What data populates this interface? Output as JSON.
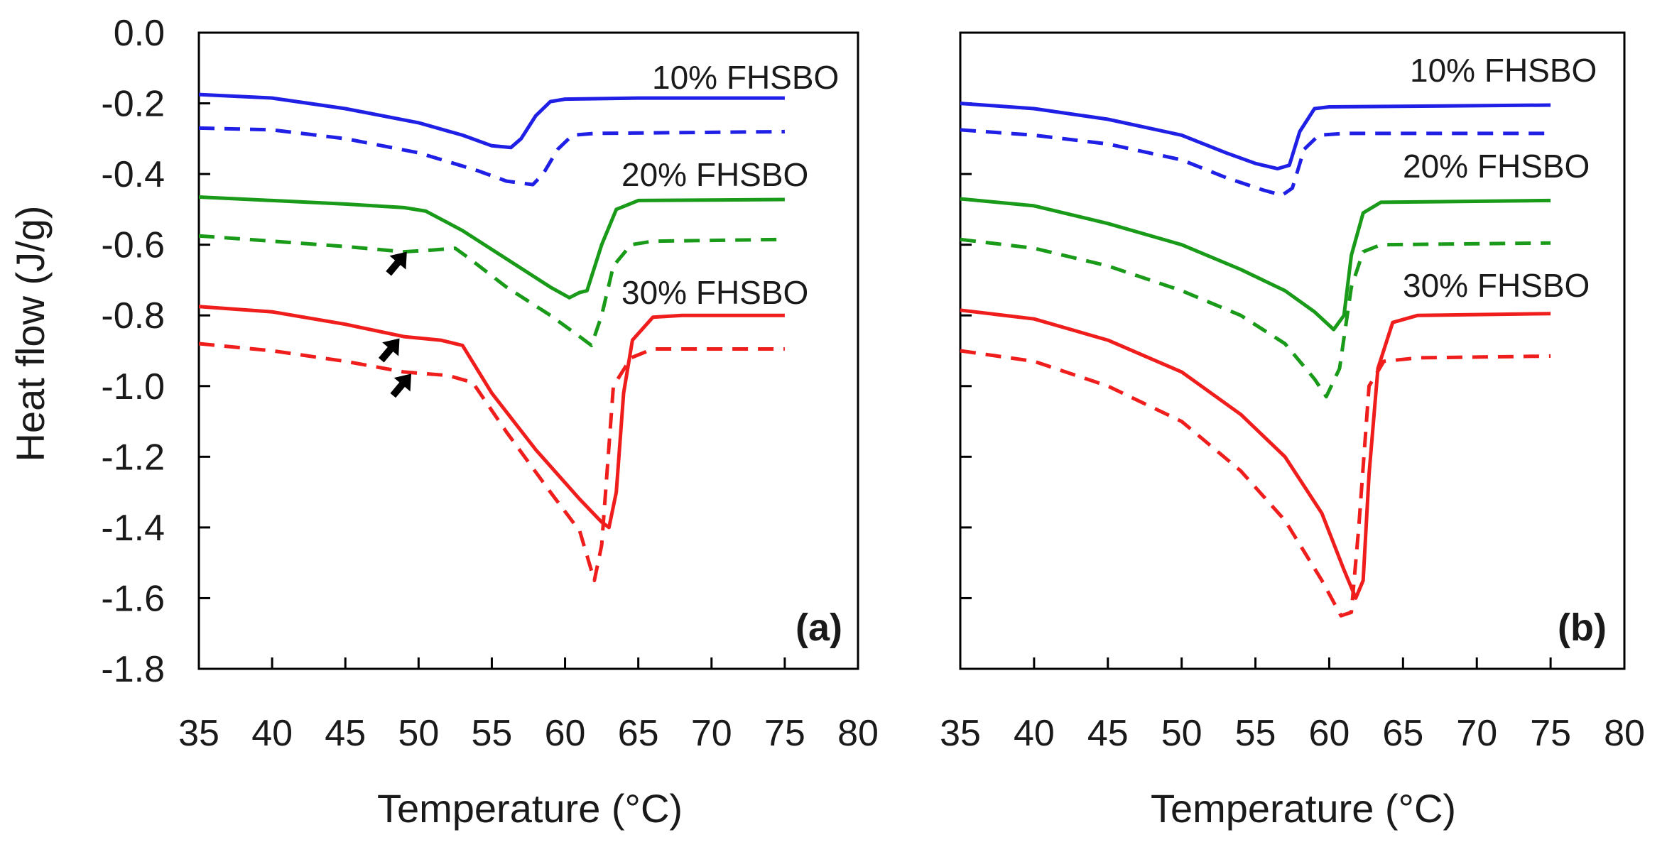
{
  "ylabel": "Heat flow (J/g)",
  "colors": {
    "10% FHSBO": "#1f1fe6",
    "20% FHSBO": "#199a19",
    "30% FHSBO": "#f01d1d",
    "arrow": "#000000"
  },
  "chart_data": [
    {
      "type": "line",
      "panel_label": "(a)",
      "xlabel": "Temperature (°C)",
      "ylabel": "Heat flow (J/g)",
      "xlim": [
        35,
        80
      ],
      "ylim": [
        -1.8,
        0.0
      ],
      "xticks": [
        "35",
        "40",
        "45",
        "50",
        "55",
        "60",
        "65",
        "70",
        "75",
        "80"
      ],
      "yticks": [
        "0.0",
        "-0.2",
        "-0.4",
        "-0.6",
        "-0.8",
        "-1.0",
        "-1.2",
        "-1.4",
        "-1.6",
        "-1.8"
      ],
      "grid": false,
      "series_labels": [
        "10% FHSBO",
        "20% FHSBO",
        "30% FHSBO"
      ],
      "series": [
        {
          "group": "10% FHSBO",
          "style": "solid",
          "color": "#1f1fe6",
          "points": [
            [
              35,
              -0.175
            ],
            [
              40,
              -0.185
            ],
            [
              45,
              -0.215
            ],
            [
              50,
              -0.255
            ],
            [
              53,
              -0.29
            ],
            [
              55,
              -0.32
            ],
            [
              56.3,
              -0.325
            ],
            [
              57,
              -0.3
            ],
            [
              58,
              -0.235
            ],
            [
              59,
              -0.195
            ],
            [
              60,
              -0.188
            ],
            [
              65,
              -0.185
            ],
            [
              75,
              -0.185
            ]
          ]
        },
        {
          "group": "10% FHSBO",
          "style": "dashed",
          "color": "#1f1fe6",
          "points": [
            [
              35,
              -0.27
            ],
            [
              40,
              -0.275
            ],
            [
              45,
              -0.3
            ],
            [
              50,
              -0.34
            ],
            [
              54,
              -0.39
            ],
            [
              56,
              -0.42
            ],
            [
              57.8,
              -0.43
            ],
            [
              58.5,
              -0.4
            ],
            [
              59.5,
              -0.33
            ],
            [
              60.5,
              -0.29
            ],
            [
              62,
              -0.285
            ],
            [
              75,
              -0.28
            ]
          ]
        },
        {
          "group": "20% FHSBO",
          "style": "solid",
          "color": "#199a19",
          "points": [
            [
              35,
              -0.465
            ],
            [
              40,
              -0.475
            ],
            [
              45,
              -0.485
            ],
            [
              49,
              -0.495
            ],
            [
              50.5,
              -0.505
            ],
            [
              53,
              -0.56
            ],
            [
              56,
              -0.64
            ],
            [
              59,
              -0.72
            ],
            [
              60.3,
              -0.75
            ],
            [
              61,
              -0.735
            ],
            [
              61.5,
              -0.73
            ],
            [
              62.5,
              -0.6
            ],
            [
              63.5,
              -0.5
            ],
            [
              65,
              -0.475
            ],
            [
              75,
              -0.472
            ]
          ]
        },
        {
          "group": "20% FHSBO",
          "style": "dashed",
          "color": "#199a19",
          "points": [
            [
              35,
              -0.575
            ],
            [
              40,
              -0.59
            ],
            [
              45,
              -0.605
            ],
            [
              49,
              -0.62
            ],
            [
              51,
              -0.615
            ],
            [
              52.5,
              -0.61
            ],
            [
              53.5,
              -0.64
            ],
            [
              56,
              -0.72
            ],
            [
              59,
              -0.8
            ],
            [
              61,
              -0.86
            ],
            [
              61.8,
              -0.885
            ],
            [
              62.5,
              -0.8
            ],
            [
              63.3,
              -0.66
            ],
            [
              64.5,
              -0.6
            ],
            [
              66,
              -0.59
            ],
            [
              75,
              -0.585
            ]
          ]
        },
        {
          "group": "30% FHSBO",
          "style": "solid",
          "color": "#f01d1d",
          "points": [
            [
              35,
              -0.775
            ],
            [
              40,
              -0.79
            ],
            [
              45,
              -0.825
            ],
            [
              49,
              -0.86
            ],
            [
              51.5,
              -0.87
            ],
            [
              53,
              -0.885
            ],
            [
              55,
              -1.02
            ],
            [
              58,
              -1.18
            ],
            [
              61,
              -1.32
            ],
            [
              62.5,
              -1.385
            ],
            [
              63,
              -1.4
            ],
            [
              63.5,
              -1.3
            ],
            [
              64,
              -1.02
            ],
            [
              64.6,
              -0.87
            ],
            [
              66,
              -0.805
            ],
            [
              68,
              -0.8
            ],
            [
              75,
              -0.8
            ]
          ]
        },
        {
          "group": "30% FHSBO",
          "style": "dashed",
          "color": "#f01d1d",
          "points": [
            [
              35,
              -0.88
            ],
            [
              40,
              -0.9
            ],
            [
              45,
              -0.93
            ],
            [
              49,
              -0.96
            ],
            [
              52,
              -0.97
            ],
            [
              53.7,
              -0.99
            ],
            [
              56,
              -1.13
            ],
            [
              59,
              -1.3
            ],
            [
              61,
              -1.41
            ],
            [
              62,
              -1.55
            ],
            [
              62.5,
              -1.45
            ],
            [
              63.3,
              -1.0
            ],
            [
              64.5,
              -0.92
            ],
            [
              66,
              -0.895
            ],
            [
              75,
              -0.895
            ]
          ]
        }
      ],
      "annotations": [
        {
          "type": "arrow",
          "target": [
            49.2,
            -0.62
          ]
        },
        {
          "type": "arrow",
          "target": [
            48.7,
            -0.865
          ]
        },
        {
          "type": "arrow",
          "target": [
            49.5,
            -0.965
          ]
        }
      ]
    },
    {
      "type": "line",
      "panel_label": "(b)",
      "xlabel": "Temperature (°C)",
      "xlim": [
        35,
        80
      ],
      "ylim": [
        -1.8,
        0.0
      ],
      "xticks": [
        "35",
        "40",
        "45",
        "50",
        "55",
        "60",
        "65",
        "70",
        "75",
        "80"
      ],
      "grid": false,
      "series_labels": [
        "10% FHSBO",
        "20% FHSBO",
        "30% FHSBO"
      ],
      "series": [
        {
          "group": "10% FHSBO",
          "style": "solid",
          "color": "#1f1fe6",
          "points": [
            [
              35,
              -0.2
            ],
            [
              40,
              -0.215
            ],
            [
              45,
              -0.245
            ],
            [
              50,
              -0.29
            ],
            [
              53,
              -0.34
            ],
            [
              55,
              -0.37
            ],
            [
              56.5,
              -0.385
            ],
            [
              57.3,
              -0.375
            ],
            [
              58,
              -0.28
            ],
            [
              59,
              -0.215
            ],
            [
              60,
              -0.21
            ],
            [
              75,
              -0.205
            ]
          ]
        },
        {
          "group": "10% FHSBO",
          "style": "dashed",
          "color": "#1f1fe6",
          "points": [
            [
              35,
              -0.275
            ],
            [
              40,
              -0.29
            ],
            [
              45,
              -0.315
            ],
            [
              50,
              -0.36
            ],
            [
              53,
              -0.41
            ],
            [
              55.5,
              -0.445
            ],
            [
              56.8,
              -0.46
            ],
            [
              57.5,
              -0.44
            ],
            [
              58.3,
              -0.33
            ],
            [
              59.3,
              -0.29
            ],
            [
              61,
              -0.285
            ],
            [
              75,
              -0.285
            ]
          ]
        },
        {
          "group": "20% FHSBO",
          "style": "solid",
          "color": "#199a19",
          "points": [
            [
              35,
              -0.47
            ],
            [
              40,
              -0.49
            ],
            [
              45,
              -0.54
            ],
            [
              50,
              -0.6
            ],
            [
              54,
              -0.67
            ],
            [
              57,
              -0.73
            ],
            [
              59,
              -0.79
            ],
            [
              60.3,
              -0.84
            ],
            [
              61,
              -0.8
            ],
            [
              61.5,
              -0.63
            ],
            [
              62.3,
              -0.51
            ],
            [
              63.5,
              -0.48
            ],
            [
              75,
              -0.475
            ]
          ]
        },
        {
          "group": "20% FHSBO",
          "style": "dashed",
          "color": "#199a19",
          "points": [
            [
              35,
              -0.585
            ],
            [
              40,
              -0.61
            ],
            [
              45,
              -0.66
            ],
            [
              50,
              -0.73
            ],
            [
              54,
              -0.8
            ],
            [
              57,
              -0.88
            ],
            [
              59,
              -0.98
            ],
            [
              59.8,
              -1.03
            ],
            [
              60.7,
              -0.95
            ],
            [
              61.5,
              -0.72
            ],
            [
              62.3,
              -0.62
            ],
            [
              63.5,
              -0.6
            ],
            [
              75,
              -0.595
            ]
          ]
        },
        {
          "group": "30% FHSBO",
          "style": "solid",
          "color": "#f01d1d",
          "points": [
            [
              35,
              -0.785
            ],
            [
              40,
              -0.81
            ],
            [
              45,
              -0.87
            ],
            [
              50,
              -0.96
            ],
            [
              54,
              -1.08
            ],
            [
              57,
              -1.2
            ],
            [
              59.5,
              -1.36
            ],
            [
              61,
              -1.52
            ],
            [
              61.8,
              -1.6
            ],
            [
              62.3,
              -1.55
            ],
            [
              62.7,
              -1.25
            ],
            [
              63.3,
              -0.95
            ],
            [
              64.3,
              -0.82
            ],
            [
              66,
              -0.8
            ],
            [
              75,
              -0.795
            ]
          ]
        },
        {
          "group": "30% FHSBO",
          "style": "dashed",
          "color": "#f01d1d",
          "points": [
            [
              35,
              -0.9
            ],
            [
              40,
              -0.93
            ],
            [
              45,
              -1.0
            ],
            [
              50,
              -1.1
            ],
            [
              54,
              -1.24
            ],
            [
              57,
              -1.38
            ],
            [
              59.5,
              -1.55
            ],
            [
              60.8,
              -1.65
            ],
            [
              61.5,
              -1.64
            ],
            [
              62,
              -1.4
            ],
            [
              62.7,
              -1.0
            ],
            [
              63.7,
              -0.93
            ],
            [
              66,
              -0.92
            ],
            [
              75,
              -0.915
            ]
          ]
        }
      ],
      "annotations": []
    }
  ]
}
